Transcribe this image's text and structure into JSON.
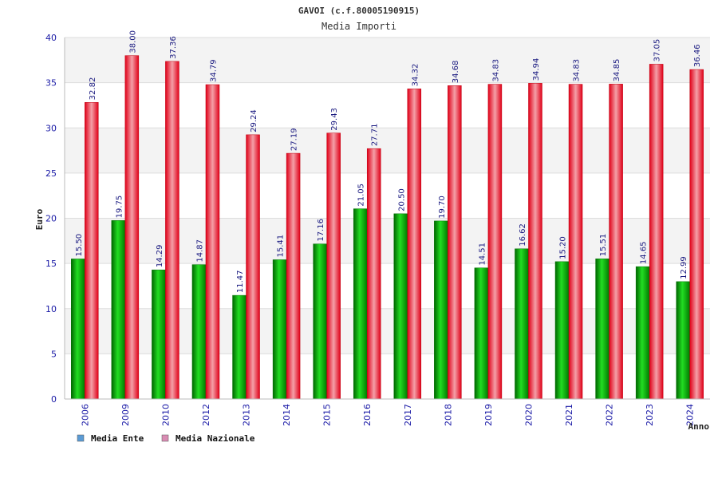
{
  "chart_data": {
    "type": "bar",
    "title": "GAVOI (c.f.80005190915)",
    "subtitle": "Media Importi",
    "ylabel": "Euro",
    "xlabel": "Anno",
    "ylim": [
      0,
      40
    ],
    "yticks": [
      0,
      5,
      10,
      15,
      20,
      25,
      30,
      35,
      40
    ],
    "categories": [
      "2006",
      "2009",
      "2010",
      "2012",
      "2013",
      "2014",
      "2015",
      "2016",
      "2017",
      "2018",
      "2019",
      "2020",
      "2021",
      "2022",
      "2023",
      "2024"
    ],
    "series": [
      {
        "name": "Media Ente",
        "color": "#00c000",
        "values": [
          15.5,
          19.75,
          14.29,
          14.87,
          11.47,
          15.41,
          17.16,
          21.05,
          20.5,
          19.7,
          14.51,
          16.62,
          15.2,
          15.51,
          14.65,
          12.99
        ],
        "labels": [
          "15.50",
          "19.75",
          "14.29",
          "14.87",
          "11.47",
          "15.41",
          "17.16",
          "21.05",
          "20.50",
          "19.70",
          "14.51",
          "16.62",
          "15.20",
          "15.51",
          "14.65",
          "12.99"
        ]
      },
      {
        "name": "Media Nazionale",
        "color": "#e8102a",
        "values": [
          32.82,
          38.0,
          37.36,
          34.79,
          29.24,
          27.19,
          29.43,
          27.71,
          34.32,
          34.68,
          34.83,
          34.94,
          34.83,
          34.85,
          37.05,
          36.46
        ],
        "labels": [
          "32.82",
          "38.00",
          "37.36",
          "34.79",
          "29.24",
          "27.19",
          "29.43",
          "27.71",
          "34.32",
          "34.68",
          "34.83",
          "34.94",
          "34.83",
          "34.85",
          "37.05",
          "36.46"
        ]
      }
    ],
    "legend": {
      "placement": "bottom-left",
      "items": [
        {
          "label": "Media Ente",
          "color": "#5b9bd5"
        },
        {
          "label": "Media Nazionale",
          "color": "#d98cb3"
        }
      ]
    },
    "grid": true
  }
}
